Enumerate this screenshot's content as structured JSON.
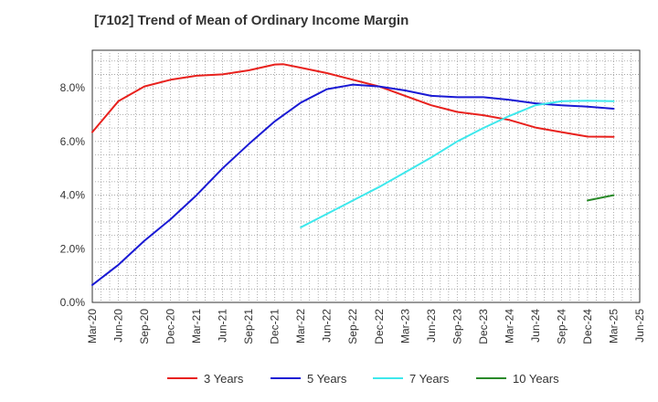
{
  "chart_data": {
    "type": "line",
    "title": "[7102]  Trend of Mean of Ordinary Income Margin",
    "xlabel": "",
    "ylabel": "",
    "x_ticks": [
      "Mar-20",
      "Jun-20",
      "Sep-20",
      "Dec-20",
      "Mar-21",
      "Jun-21",
      "Sep-21",
      "Dec-21",
      "Mar-22",
      "Jun-22",
      "Sep-22",
      "Dec-22",
      "Mar-23",
      "Jun-23",
      "Sep-23",
      "Dec-23",
      "Mar-24",
      "Jun-24",
      "Sep-24",
      "Dec-24",
      "Mar-25",
      "Jun-25"
    ],
    "y_ticks": [
      0,
      2,
      4,
      6,
      8
    ],
    "y_tick_labels": [
      "0.0%",
      "2.0%",
      "4.0%",
      "6.0%",
      "8.0%"
    ],
    "ylim": [
      0,
      9.4
    ],
    "grid": true,
    "legend_position": "bottom",
    "series": [
      {
        "name": "3 Years",
        "color": "#e8211d",
        "x": [
          "2020-03",
          "2020-06",
          "2020-09",
          "2020-12",
          "2021-03",
          "2021-06",
          "2021-09",
          "2021-12",
          "2022-01",
          "2022-03",
          "2022-06",
          "2022-09",
          "2022-12",
          "2023-03",
          "2023-06",
          "2023-09",
          "2023-12",
          "2024-03",
          "2024-06",
          "2024-09",
          "2024-12",
          "2025-03"
        ],
        "y": [
          6.35,
          7.5,
          8.05,
          8.3,
          8.45,
          8.5,
          8.65,
          8.87,
          8.88,
          8.75,
          8.55,
          8.3,
          8.05,
          7.7,
          7.35,
          7.1,
          6.98,
          6.8,
          6.52,
          6.35,
          6.18,
          6.17
        ]
      },
      {
        "name": "5 Years",
        "color": "#1a1ad4",
        "x": [
          "2020-03",
          "2020-06",
          "2020-09",
          "2020-12",
          "2021-03",
          "2021-06",
          "2021-09",
          "2021-12",
          "2022-03",
          "2022-06",
          "2022-09",
          "2022-12",
          "2023-03",
          "2023-06",
          "2023-09",
          "2023-12",
          "2024-03",
          "2024-06",
          "2024-09",
          "2024-12",
          "2025-03"
        ],
        "y": [
          0.65,
          1.4,
          2.3,
          3.1,
          4.0,
          5.0,
          5.9,
          6.75,
          7.45,
          7.95,
          8.12,
          8.05,
          7.9,
          7.7,
          7.65,
          7.65,
          7.55,
          7.42,
          7.35,
          7.3,
          7.22
        ]
      },
      {
        "name": "7 Years",
        "color": "#3ee8ec",
        "x": [
          "2022-03",
          "2022-06",
          "2022-09",
          "2022-12",
          "2023-03",
          "2023-06",
          "2023-09",
          "2023-12",
          "2024-03",
          "2024-06",
          "2024-09",
          "2024-12",
          "2025-03"
        ],
        "y": [
          2.8,
          3.3,
          3.8,
          4.3,
          4.85,
          5.4,
          6.0,
          6.5,
          6.95,
          7.35,
          7.5,
          7.52,
          7.5
        ]
      },
      {
        "name": "10 Years",
        "color": "#2a8a2a",
        "x": [
          "2024-12",
          "2025-03"
        ],
        "y": [
          3.8,
          4.0
        ]
      }
    ]
  }
}
